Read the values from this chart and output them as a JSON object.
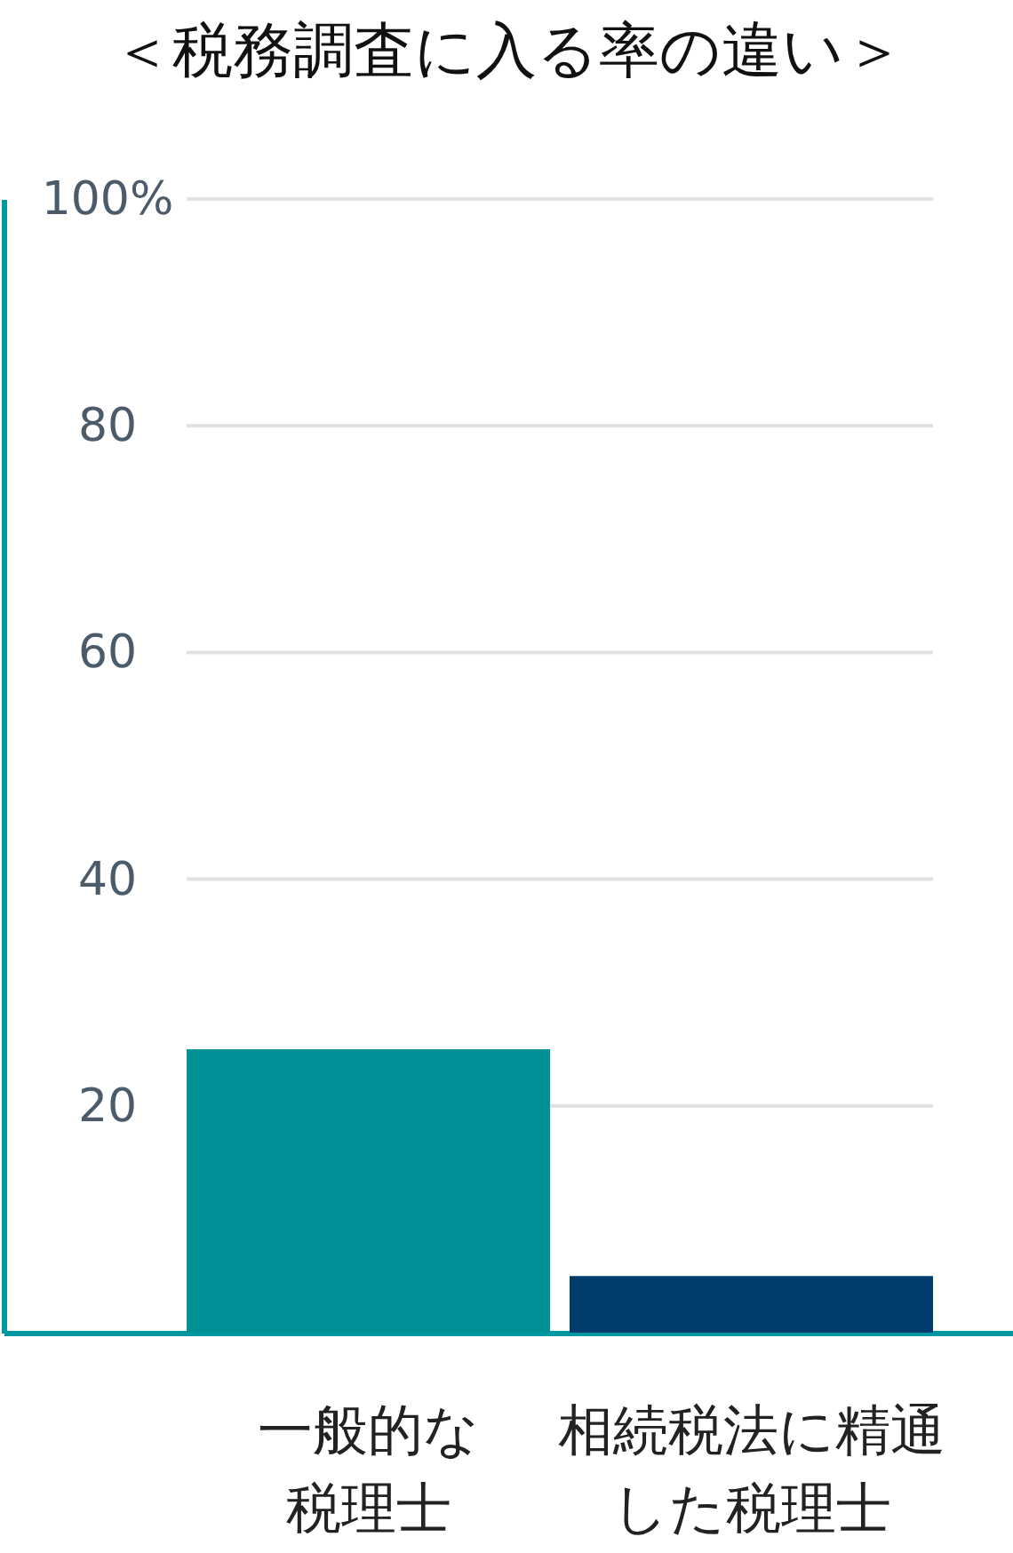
{
  "chart_data": {
    "type": "bar",
    "title": "＜税務調査に入る率の違い＞",
    "categories": [
      "一般的な税理士",
      "相続税法に精通した税理士"
    ],
    "values": [
      25,
      5
    ],
    "colors": [
      "#009096",
      "#003c6e"
    ],
    "ylim": [
      0,
      100
    ],
    "yticks": [
      20,
      40,
      60,
      80,
      {
        "value": 100,
        "label": "100%"
      }
    ],
    "grid": "y"
  }
}
